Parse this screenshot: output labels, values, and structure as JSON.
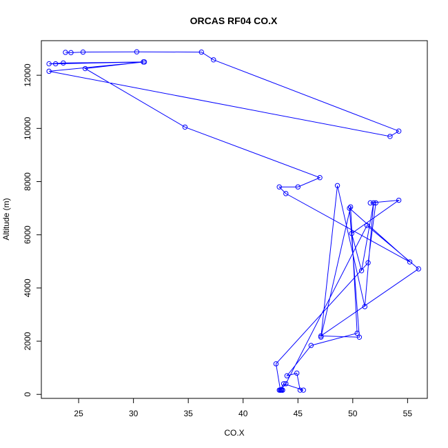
{
  "chart_data": {
    "type": "line",
    "title": "ORCAS RF04 CO.X",
    "xlabel": "CO.X",
    "ylabel": "Altitude (m)",
    "xlim": [
      21.6,
      56.8
    ],
    "ylim": [
      -150,
      13300
    ],
    "xticks": [
      25,
      30,
      35,
      40,
      45,
      50,
      55
    ],
    "yticks": [
      0,
      2000,
      4000,
      6000,
      8000,
      10000,
      12000
    ],
    "grid": false,
    "legend": "none",
    "series_color": "#0000ff",
    "marker": "open-circle",
    "series": [
      {
        "x": [
          43.6,
          43.5,
          43.4,
          43.5,
          43.3,
          43.6,
          43.4,
          43.7,
          45.5,
          45.2,
          44.9,
          44.0,
          46.2,
          50.4,
          49.8,
          47.1,
          48.6,
          51.1,
          51.9,
          50.8,
          49.9,
          54.2,
          51.6,
          52.1,
          51.4,
          43.0,
          43.4,
          43.9,
          51.3,
          56.0,
          47.1,
          50.6,
          49.7,
          55.2,
          43.9,
          43.3,
          45.0,
          47.0,
          34.7,
          25.6,
          30.9,
          22.9,
          22.3,
          23.6,
          31.0,
          22.3,
          53.4,
          54.2,
          37.3,
          36.2,
          30.3,
          25.4,
          24.3,
          23.8
        ],
        "y": [
          160,
          160,
          160,
          180,
          160,
          160,
          170,
          400,
          160,
          160,
          800,
          700,
          1840,
          2300,
          7050,
          2150,
          7850,
          3300,
          7200,
          4650,
          6050,
          7300,
          7200,
          7200,
          4950,
          1150,
          160,
          400,
          6350,
          4720,
          2200,
          2150,
          7000,
          4980,
          7550,
          7800,
          7800,
          8150,
          10050,
          12250,
          12500,
          12430,
          12430,
          12460,
          12500,
          12150,
          9700,
          9900,
          12580,
          12870,
          12880,
          12870,
          12850,
          12860
        ]
      }
    ]
  }
}
